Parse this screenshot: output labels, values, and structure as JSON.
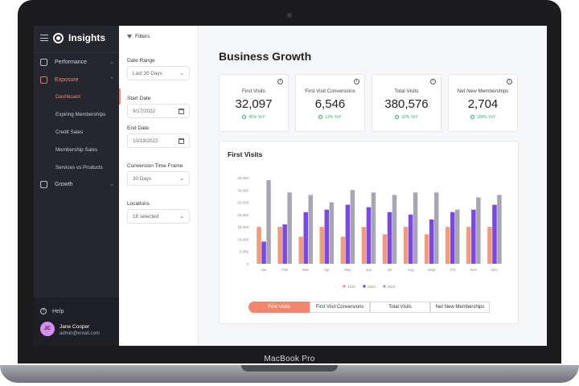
{
  "device": {
    "brand": "MacBook Pro"
  },
  "sidebar": {
    "app_name": "Insights",
    "items": [
      {
        "label": "Performance",
        "icon": "grid-icon",
        "expanded": false
      },
      {
        "label": "Exposure",
        "icon": "chart-line-icon",
        "expanded": true
      },
      {
        "label": "Growth",
        "icon": "checkbox-icon",
        "expanded": false
      }
    ],
    "sub_items": [
      "Dashboard",
      "Expiring Memberships",
      "Credit Sales",
      "Membership Sales",
      "Services vs Products"
    ],
    "help_label": "Help",
    "user": {
      "initials": "JC",
      "name": "Jane Cooper",
      "email": "admin@email.com"
    }
  },
  "filters": {
    "title": "Filters",
    "date_range": {
      "label": "Date Range",
      "value": "Last 30 Days"
    },
    "start_date": {
      "label": "Start Date",
      "value": "9/17/2022"
    },
    "end_date": {
      "label": "End Date",
      "value": "10/19/2022"
    },
    "conversion": {
      "label": "Conversion Time Frame",
      "value": "30 Days"
    },
    "locations": {
      "label": "Locations",
      "value": "18 selected"
    }
  },
  "main": {
    "title": "Business Growth",
    "kpis": [
      {
        "title": "First Visits",
        "value": "32,097",
        "delta": "45% YoY"
      },
      {
        "title": "First Visit Conversions",
        "value": "6,546",
        "delta": "13% YoY"
      },
      {
        "title": "Total Visits",
        "value": "380,576",
        "delta": "32% YoY"
      },
      {
        "title": "Net New Memberships",
        "value": "2,704",
        "delta": "100% YoY"
      }
    ],
    "tabs": [
      "First Visits",
      "First Visit Conversions",
      "Total Visits",
      "Net New Memberships"
    ],
    "active_tab": "First Visits"
  },
  "colors": {
    "accent": "#f2866e",
    "s2020": "#f29a79",
    "s2022": "#7b47e6",
    "s2021": "#a6a6b4",
    "sidebar_bg": "#26262e"
  },
  "chart_data": {
    "type": "bar",
    "title": "First Visits",
    "categories": [
      "Jan",
      "Feb",
      "Mar",
      "Apr",
      "May",
      "Jun",
      "Jul",
      "Aug",
      "Sept",
      "Oct",
      "Nov",
      "Dec"
    ],
    "series": [
      {
        "name": "2020",
        "values": [
          15000,
          15000,
          11000,
          15000,
          11000,
          15000,
          12000,
          15000,
          12000,
          15000,
          15000,
          15000
        ]
      },
      {
        "name": "2022",
        "values": [
          9000,
          16000,
          21000,
          22000,
          24000,
          23000,
          21000,
          20000,
          18000,
          21000,
          22000,
          24000
        ]
      },
      {
        "name": "2021",
        "values": [
          34000,
          29000,
          28000,
          25000,
          30000,
          29000,
          28000,
          29000,
          29000,
          22000,
          27000,
          28000
        ]
      }
    ],
    "yticks": [
      "0",
      "5,000",
      "10,000",
      "15,000",
      "20,000",
      "25,000",
      "30,000",
      "35,000"
    ],
    "ylim": [
      0,
      35000
    ],
    "legend": "bottom-center"
  }
}
